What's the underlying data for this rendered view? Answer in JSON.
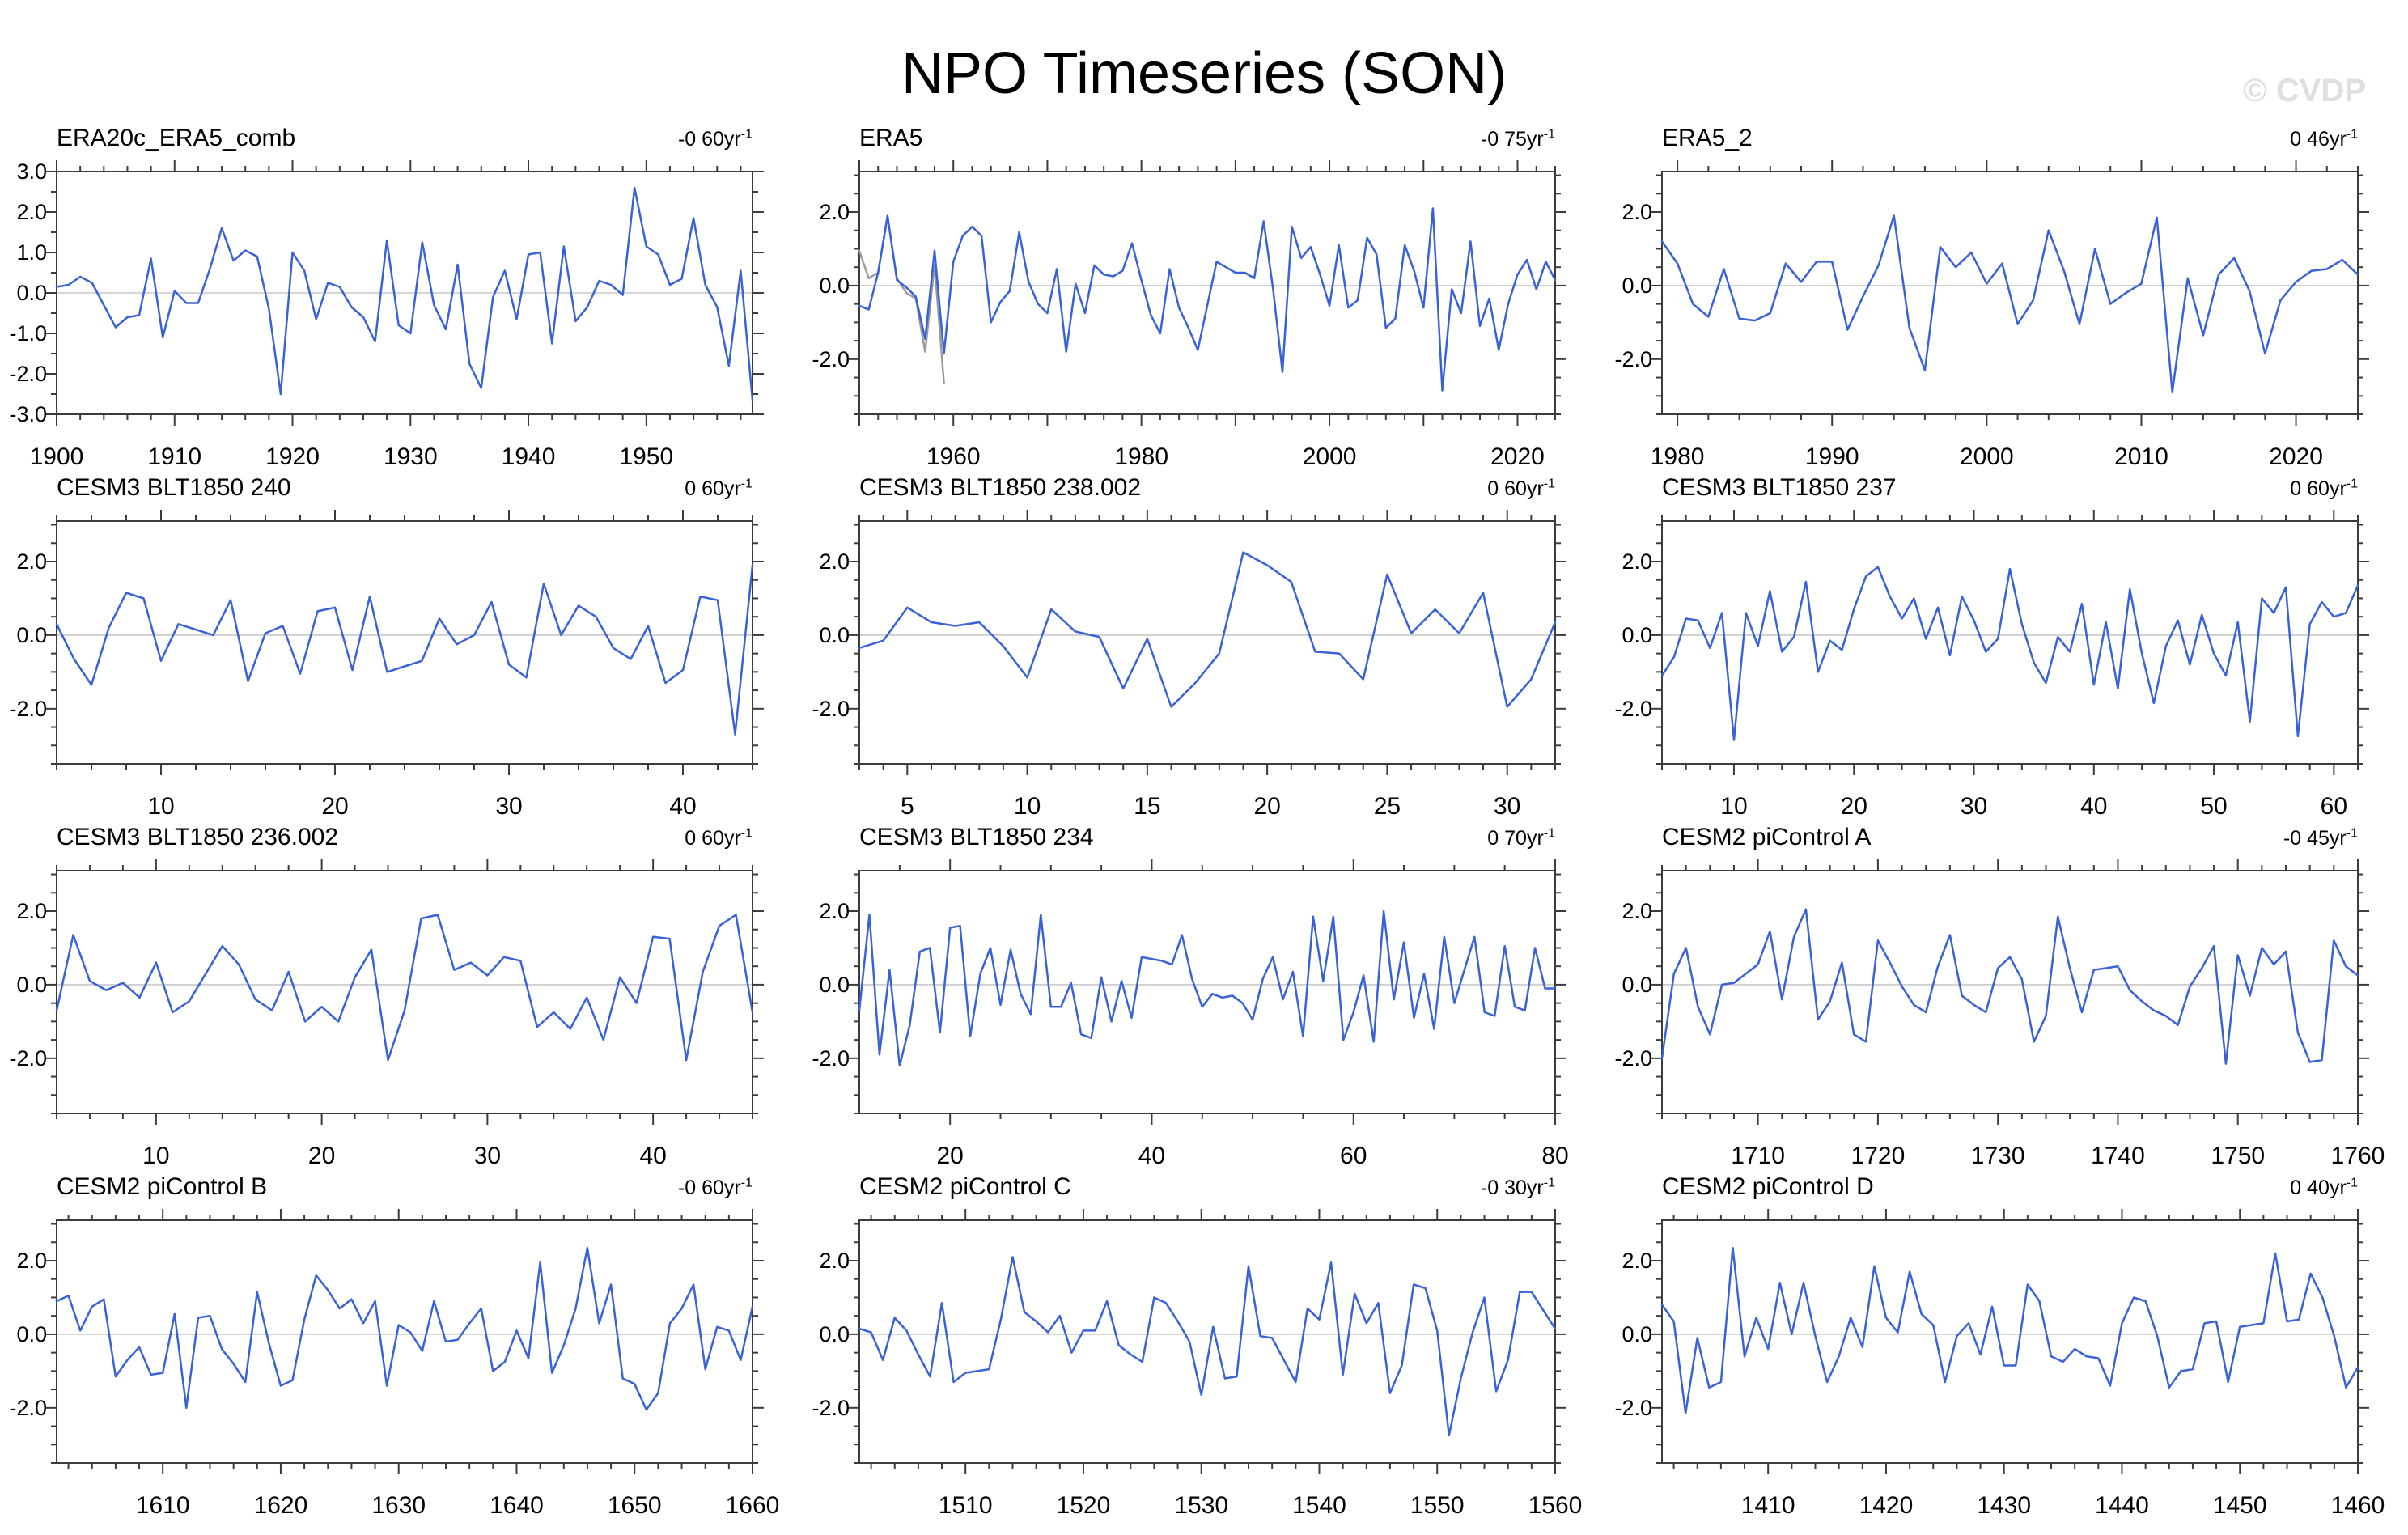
{
  "page": {
    "title": "NPO Timeseries (SON)",
    "watermark": "© CVDP"
  },
  "colors": {
    "series": "#3A62D7",
    "overlay_series": "#999999",
    "zero_line": "#C8C8C8",
    "axis": "#3C3C3C",
    "text": "#000000",
    "watermark": "#DFDFDF"
  },
  "chart_data": [
    {
      "type": "line",
      "title": "ERA20c_ERA5_comb",
      "trend": {
        "value": "-0",
        "unit": "60yr",
        "exp": "-1"
      },
      "x_start": 1900,
      "x_major": 10,
      "x_minor": 2,
      "x_labels": [
        1900,
        1910,
        1920,
        1930,
        1940,
        1950
      ],
      "ylim": [
        -3.0,
        3.0
      ],
      "y_major": 1.0,
      "y_minor": 0.5,
      "values": [
        0.15,
        0.2,
        0.4,
        0.25,
        -0.3,
        -0.85,
        -0.6,
        -0.55,
        0.85,
        -1.1,
        0.05,
        -0.25,
        -0.25,
        0.6,
        1.6,
        0.8,
        1.05,
        0.9,
        -0.4,
        -2.5,
        1.0,
        0.55,
        -0.65,
        0.25,
        0.15,
        -0.35,
        -0.6,
        -1.2,
        1.3,
        -0.8,
        -1.0,
        1.25,
        -0.3,
        -0.9,
        0.7,
        -1.75,
        -2.35,
        -0.1,
        0.55,
        -0.65,
        0.95,
        1.0,
        -1.25,
        1.15,
        -0.7,
        -0.35,
        0.3,
        0.2,
        -0.05,
        2.6,
        1.15,
        0.95,
        0.2,
        0.35,
        1.85,
        0.2,
        -0.35,
        -1.8,
        0.55,
        -2.65
      ]
    },
    {
      "type": "line",
      "title": "ERA5",
      "trend": {
        "value": "-0",
        "unit": "75yr",
        "exp": "-1"
      },
      "x_start": 1950,
      "x_major": 10,
      "x_minor": 2,
      "x_labels": [
        1960,
        1980,
        2000,
        2020
      ],
      "ylim": [
        -3.5,
        3.1
      ],
      "y_major": 2.0,
      "y_minor": 0.5,
      "values": [
        -0.55,
        -0.65,
        0.35,
        1.9,
        0.15,
        -0.05,
        -0.3,
        -1.45,
        0.95,
        -1.85,
        0.65,
        1.35,
        1.6,
        1.35,
        -1.0,
        -0.45,
        -0.15,
        1.45,
        0.1,
        -0.5,
        -0.75,
        0.45,
        -1.8,
        0.05,
        -0.75,
        0.55,
        0.3,
        0.25,
        0.4,
        1.15,
        0.15,
        -0.8,
        -1.3,
        0.45,
        -0.6,
        -1.15,
        -1.75,
        -0.55,
        0.65,
        0.5,
        0.35,
        0.35,
        0.2,
        1.75,
        -0.1,
        -2.35,
        1.6,
        0.75,
        1.05,
        0.3,
        -0.55,
        1.1,
        -0.6,
        -0.4,
        1.3,
        0.85,
        -1.15,
        -0.9,
        1.1,
        0.4,
        -0.6,
        2.1,
        -2.85,
        -0.1,
        -0.75,
        1.2,
        -1.1,
        -0.35,
        -1.75,
        -0.5,
        0.3,
        0.7,
        -0.1,
        0.65,
        0.15
      ],
      "overlay_x_start": 1950,
      "overlay_values": [
        0.95,
        0.2,
        0.35,
        1.85,
        0.2,
        -0.2,
        -0.35,
        -1.8,
        0.55,
        -2.65
      ]
    },
    {
      "type": "line",
      "title": "ERA5_2",
      "trend": {
        "value": "0",
        "unit": "46yr",
        "exp": "-1"
      },
      "x_start": 1979,
      "x_major": 10,
      "x_minor": 2,
      "x_labels": [
        1980,
        1990,
        2000,
        2010,
        2020
      ],
      "ylim": [
        -3.5,
        3.1
      ],
      "y_major": 2.0,
      "y_minor": 0.5,
      "values": [
        1.2,
        0.6,
        -0.5,
        -0.85,
        0.45,
        -0.9,
        -0.95,
        -0.75,
        0.6,
        0.1,
        0.65,
        0.65,
        -1.2,
        -0.3,
        0.55,
        1.9,
        -1.15,
        -2.3,
        1.05,
        0.5,
        0.9,
        0.05,
        0.6,
        -1.05,
        -0.4,
        1.5,
        0.4,
        -1.05,
        1.0,
        -0.5,
        -0.2,
        0.05,
        1.85,
        -2.9,
        0.2,
        -1.35,
        0.3,
        0.75,
        -0.15,
        -1.85,
        -0.4,
        0.1,
        0.4,
        0.45,
        0.7,
        0.3
      ]
    },
    {
      "type": "line",
      "title": "CESM3 BLT1850 240",
      "trend": {
        "value": "0",
        "unit": "60yr",
        "exp": "-1"
      },
      "x_start": 4,
      "x_major": 10,
      "x_minor": 2,
      "x_labels": [
        10,
        20,
        30,
        40
      ],
      "ylim": [
        -3.5,
        3.1
      ],
      "y_major": 2.0,
      "y_minor": 0.5,
      "values": [
        0.3,
        -0.65,
        -1.35,
        0.2,
        1.15,
        1.0,
        -0.7,
        0.3,
        0.15,
        0.0,
        0.95,
        -1.25,
        0.05,
        0.25,
        -1.05,
        0.65,
        0.75,
        -0.95,
        1.05,
        -1.0,
        -0.85,
        -0.7,
        0.45,
        -0.25,
        0.0,
        0.9,
        -0.8,
        -1.15,
        1.4,
        0.0,
        0.8,
        0.5,
        -0.35,
        -0.65,
        0.25,
        -1.3,
        -0.95,
        1.05,
        0.95,
        -2.7,
        1.9
      ]
    },
    {
      "type": "line",
      "title": "CESM3 BLT1850 238.002",
      "trend": {
        "value": "0",
        "unit": "60yr",
        "exp": "-1"
      },
      "x_start": 3,
      "x_major": 5,
      "x_minor": 1,
      "x_labels": [
        5,
        10,
        15,
        20,
        25,
        30
      ],
      "ylim": [
        -3.5,
        3.1
      ],
      "y_major": 2.0,
      "y_minor": 0.5,
      "values": [
        -0.35,
        -0.15,
        0.75,
        0.35,
        0.25,
        0.35,
        -0.3,
        -1.15,
        0.7,
        0.1,
        -0.05,
        -1.45,
        -0.1,
        -1.95,
        -1.3,
        -0.5,
        2.25,
        1.9,
        1.45,
        -0.45,
        -0.5,
        -1.2,
        1.65,
        0.05,
        0.7,
        0.05,
        1.15,
        -1.95,
        -1.2,
        0.35
      ]
    },
    {
      "type": "line",
      "title": "CESM3 BLT1850 237",
      "trend": {
        "value": "0",
        "unit": "60yr",
        "exp": "-1"
      },
      "x_start": 4,
      "x_major": 10,
      "x_minor": 2,
      "x_labels": [
        10,
        20,
        30,
        40,
        50,
        60
      ],
      "ylim": [
        -3.5,
        3.1
      ],
      "y_major": 2.0,
      "y_minor": 0.5,
      "values": [
        -1.1,
        -0.6,
        0.45,
        0.4,
        -0.35,
        0.6,
        -2.85,
        0.6,
        -0.3,
        1.2,
        -0.45,
        -0.05,
        1.45,
        -1.0,
        -0.15,
        -0.4,
        0.7,
        1.6,
        1.85,
        1.05,
        0.45,
        1.0,
        -0.1,
        0.75,
        -0.55,
        1.05,
        0.4,
        -0.45,
        -0.1,
        1.8,
        0.3,
        -0.75,
        -1.3,
        -0.05,
        -0.45,
        0.85,
        -1.35,
        0.35,
        -1.45,
        1.25,
        -0.5,
        -1.85,
        -0.3,
        0.4,
        -0.8,
        0.55,
        -0.5,
        -1.1,
        0.35,
        -2.35,
        1.0,
        0.6,
        1.3,
        -2.75,
        0.3,
        0.9,
        0.5,
        0.6,
        1.35
      ]
    },
    {
      "type": "line",
      "title": "CESM3 BLT1850 236.002",
      "trend": {
        "value": "0",
        "unit": "60yr",
        "exp": "-1"
      },
      "x_start": 4,
      "x_major": 10,
      "x_minor": 2,
      "x_labels": [
        10,
        20,
        30,
        40
      ],
      "ylim": [
        -3.5,
        3.1
      ],
      "y_major": 2.0,
      "y_minor": 0.5,
      "values": [
        -0.7,
        1.35,
        0.1,
        -0.15,
        0.05,
        -0.35,
        0.6,
        -0.75,
        -0.45,
        0.3,
        1.05,
        0.55,
        -0.4,
        -0.7,
        0.35,
        -1.0,
        -0.6,
        -1.0,
        0.2,
        0.95,
        -2.05,
        -0.7,
        1.8,
        1.9,
        0.4,
        0.6,
        0.25,
        0.75,
        0.65,
        -1.15,
        -0.75,
        -1.2,
        -0.35,
        -1.5,
        0.2,
        -0.5,
        1.3,
        1.25,
        -2.05,
        0.35,
        1.6,
        1.9,
        -0.75
      ]
    },
    {
      "type": "line",
      "title": "CESM3 BLT1850 234",
      "trend": {
        "value": "0",
        "unit": "70yr",
        "exp": "-1"
      },
      "x_start": 11,
      "x_major": 20,
      "x_minor": 5,
      "x_labels": [
        20,
        40,
        60,
        80
      ],
      "ylim": [
        -3.5,
        3.1
      ],
      "y_major": 2.0,
      "y_minor": 0.5,
      "values": [
        -0.7,
        1.9,
        -1.9,
        0.4,
        -2.2,
        -1.1,
        0.9,
        1.0,
        -1.3,
        1.55,
        1.6,
        -1.4,
        0.3,
        1.0,
        -0.55,
        0.95,
        -0.25,
        -0.8,
        1.9,
        -0.6,
        -0.6,
        0.05,
        -1.35,
        -1.45,
        0.2,
        -1.0,
        0.1,
        -0.9,
        0.75,
        0.7,
        0.65,
        0.55,
        1.35,
        0.15,
        -0.6,
        -0.25,
        -0.35,
        -0.3,
        -0.5,
        -0.95,
        0.15,
        0.75,
        -0.4,
        0.35,
        -1.4,
        1.85,
        0.1,
        1.85,
        -1.5,
        -0.75,
        0.25,
        -1.55,
        2.0,
        -0.4,
        1.15,
        -0.9,
        0.3,
        -1.2,
        1.3,
        -0.5,
        0.4,
        1.3,
        -0.75,
        -0.85,
        1.05,
        -0.6,
        -0.7,
        1.0,
        -0.1,
        -0.1
      ]
    },
    {
      "type": "line",
      "title": "CESM2 piControl A",
      "trend": {
        "value": "-0",
        "unit": "45yr",
        "exp": "-1"
      },
      "x_start": 1702,
      "x_major": 10,
      "x_minor": 2,
      "x_labels": [
        1710,
        1720,
        1730,
        1740,
        1750,
        1760
      ],
      "ylim": [
        -3.5,
        3.1
      ],
      "y_major": 2.0,
      "y_minor": 0.5,
      "values": [
        -2.0,
        0.3,
        1.0,
        -0.6,
        -1.35,
        0.0,
        0.05,
        0.3,
        0.55,
        1.45,
        -0.4,
        1.3,
        2.05,
        -0.95,
        -0.45,
        0.6,
        -1.35,
        -1.55,
        1.2,
        0.6,
        -0.05,
        -0.55,
        -0.75,
        0.5,
        1.35,
        -0.3,
        -0.55,
        -0.75,
        0.45,
        0.75,
        0.15,
        -1.55,
        -0.85,
        1.85,
        0.45,
        -0.75,
        0.4,
        0.45,
        0.5,
        -0.15,
        -0.45,
        -0.7,
        -0.85,
        -1.1,
        -0.05,
        0.45,
        1.05,
        -2.15,
        0.8,
        -0.3,
        1.0,
        0.55,
        0.9,
        -1.3,
        -2.1,
        -2.05,
        1.2,
        0.5,
        0.25
      ]
    },
    {
      "type": "line",
      "title": "CESM2 piControl B",
      "trend": {
        "value": "-0",
        "unit": "60yr",
        "exp": "-1"
      },
      "x_start": 1601,
      "x_major": 10,
      "x_minor": 2,
      "x_labels": [
        1610,
        1620,
        1630,
        1640,
        1650,
        1660
      ],
      "ylim": [
        -3.5,
        3.1
      ],
      "y_major": 2.0,
      "y_minor": 0.5,
      "values": [
        0.9,
        1.05,
        0.1,
        0.75,
        0.95,
        -1.15,
        -0.7,
        -0.35,
        -1.1,
        -1.05,
        0.55,
        -2.0,
        0.45,
        0.5,
        -0.4,
        -0.8,
        -1.3,
        1.15,
        -0.25,
        -1.4,
        -1.25,
        0.4,
        1.6,
        1.2,
        0.7,
        0.95,
        0.3,
        0.9,
        -1.4,
        0.25,
        0.05,
        -0.45,
        0.9,
        -0.2,
        -0.15,
        0.3,
        0.7,
        -1.0,
        -0.75,
        0.1,
        -0.65,
        1.95,
        -1.05,
        -0.3,
        0.7,
        2.35,
        0.3,
        1.35,
        -1.2,
        -1.35,
        -2.05,
        -1.6,
        0.3,
        0.7,
        1.35,
        -0.95,
        0.2,
        0.1,
        -0.7,
        0.75
      ]
    },
    {
      "type": "line",
      "title": "CESM2 piControl C",
      "trend": {
        "value": "-0",
        "unit": "30yr",
        "exp": "-1"
      },
      "x_start": 1501,
      "x_major": 10,
      "x_minor": 2,
      "x_labels": [
        1510,
        1520,
        1530,
        1540,
        1550,
        1560
      ],
      "ylim": [
        -3.5,
        3.1
      ],
      "y_major": 2.0,
      "y_minor": 0.5,
      "values": [
        0.15,
        0.05,
        -0.7,
        0.45,
        0.1,
        -0.55,
        -1.15,
        0.85,
        -1.3,
        -1.05,
        -1.0,
        -0.95,
        0.4,
        2.1,
        0.6,
        0.35,
        0.05,
        0.5,
        -0.5,
        0.1,
        0.1,
        0.9,
        -0.3,
        -0.55,
        -0.75,
        1.0,
        0.85,
        0.35,
        -0.2,
        -1.65,
        0.2,
        -1.2,
        -1.15,
        1.85,
        -0.05,
        -0.1,
        -0.7,
        -1.3,
        0.7,
        0.4,
        1.95,
        -1.1,
        1.1,
        0.3,
        0.85,
        -1.6,
        -0.85,
        1.35,
        1.25,
        0.1,
        -2.75,
        -1.2,
        0.05,
        1.0,
        -1.55,
        -0.7,
        1.15,
        1.15,
        0.65,
        0.15
      ]
    },
    {
      "type": "line",
      "title": "CESM2 piControl D",
      "trend": {
        "value": "0",
        "unit": "40yr",
        "exp": "-1"
      },
      "x_start": 1401,
      "x_major": 10,
      "x_minor": 2,
      "x_labels": [
        1410,
        1420,
        1430,
        1440,
        1450,
        1460
      ],
      "ylim": [
        -3.5,
        3.1
      ],
      "y_major": 2.0,
      "y_minor": 0.5,
      "values": [
        0.8,
        0.35,
        -2.15,
        -0.1,
        -1.45,
        -1.3,
        2.35,
        -0.6,
        0.45,
        -0.4,
        1.4,
        0.0,
        1.4,
        -0.05,
        -1.3,
        -0.6,
        0.45,
        -0.35,
        1.85,
        0.45,
        0.05,
        1.7,
        0.55,
        0.25,
        -1.3,
        -0.05,
        0.3,
        -0.55,
        0.75,
        -0.85,
        -0.85,
        1.35,
        0.9,
        -0.6,
        -0.75,
        -0.4,
        -0.6,
        -0.65,
        -1.4,
        0.3,
        1.0,
        0.9,
        -0.05,
        -1.45,
        -1.0,
        -0.95,
        0.3,
        0.35,
        -1.3,
        0.2,
        0.25,
        0.3,
        2.2,
        0.35,
        0.4,
        1.65,
        1.0,
        -0.05,
        -1.45,
        -0.9
      ]
    }
  ]
}
